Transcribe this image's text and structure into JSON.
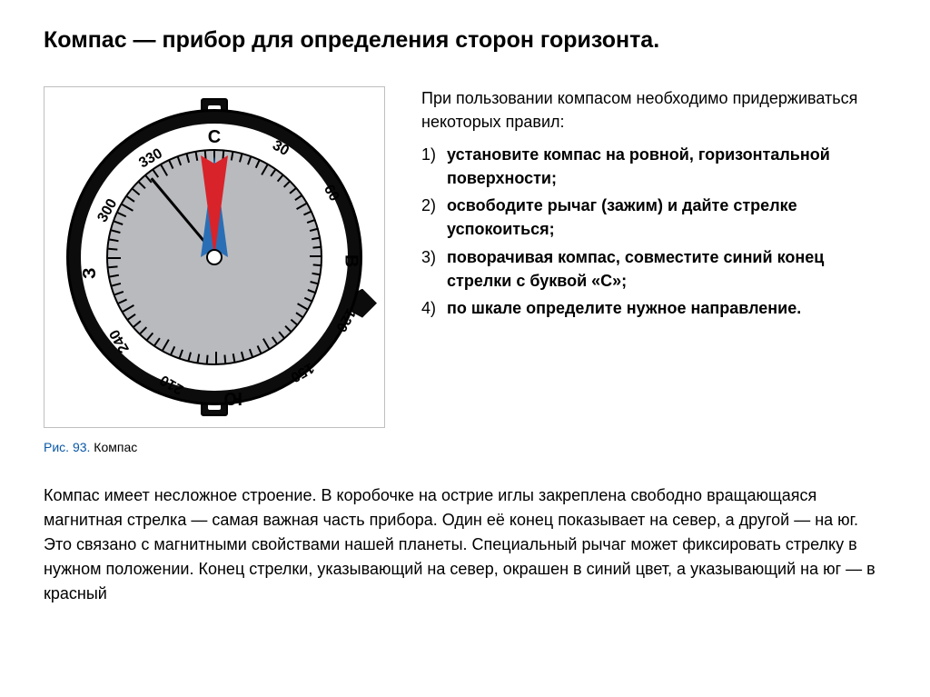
{
  "title": "Компас — прибор для определения сторон горизонта.",
  "rules_intro": "При пользовании компасом необходимо придерживаться некоторых правил:",
  "rules": [
    "установите компас на ровной, горизонтальной поверхности;",
    "освободите рычаг (зажим) и дайте стрелке успокоиться;",
    "поворачивая компас, совместите синий конец стрелки с буквой «С»;",
    "по шкале определите нужное направление."
  ],
  "caption_fig": "Рис. 93.",
  "caption_name": "Компас",
  "description": "Компас имеет несложное строение. В коробочке на острие иглы закреплена свободно вращающаяся магнитная стрелка — самая важная часть прибора. Один её конец показывает на север, а другой — на юг. Это связано с магнитными свойствами нашей планеты. Специальный рычаг может фиксировать стрелку в нужном положении. Конец стрелки, указывающий на север, окрашен в синий цвет, а указывающий на юг — в красный",
  "compass": {
    "type": "diagram",
    "outer_color": "#0c0c0c",
    "ring_color": "#ffffff",
    "dial_color": "#b9babe",
    "border_color": "#000000",
    "needle_north_color": "#2a6fb5",
    "needle_south_color": "#d8232a",
    "needle_outline": "#000000",
    "bearing_line_angle_deg": 140,
    "needle_angle_deg": 0,
    "cardinals": [
      {
        "label": "С",
        "angle": 0
      },
      {
        "label": "В",
        "angle": 90
      },
      {
        "label": "Ю",
        "angle": 180
      },
      {
        "label": "З",
        "angle": 270
      }
    ],
    "degree_labels": [
      30,
      60,
      120,
      150,
      210,
      240,
      300,
      330
    ],
    "degree_label_fontsize": 16,
    "cardinal_fontsize": 20,
    "tick_step_minor": 5,
    "tick_step_major": 30,
    "radius_ticklabel": 143,
    "radius_cardinal": 143,
    "radius_tick_inner": 118,
    "frame_border": "#bfbfbf"
  }
}
